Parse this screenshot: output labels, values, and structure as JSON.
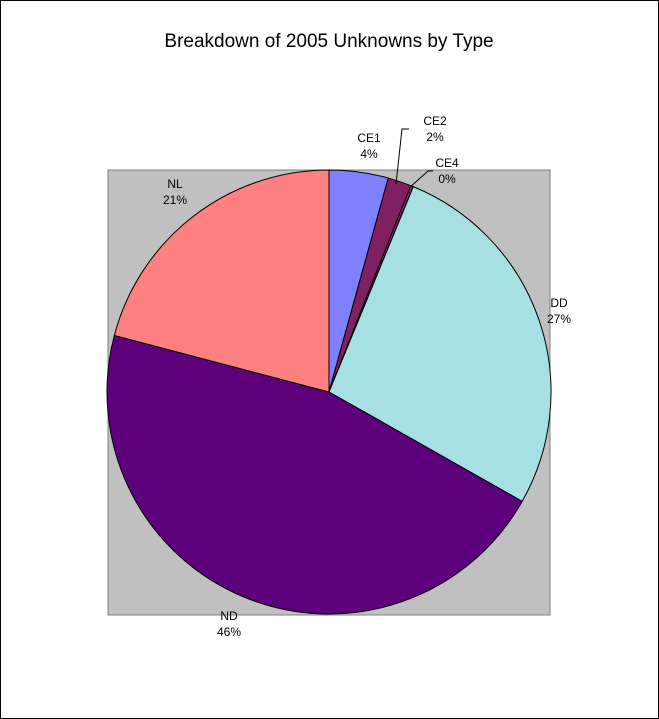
{
  "chart_data": {
    "type": "pie",
    "title": "Breakdown of 2005 Unknowns by Type",
    "plot_background": "#c0c0c0",
    "start_angle_deg": 0,
    "direction": "clockwise",
    "slices": [
      {
        "name": "CE1",
        "percent_label": "4%",
        "value": 4.3,
        "color": "#8080ff"
      },
      {
        "name": "CE2",
        "percent_label": "2%",
        "value": 1.7,
        "color": "#802060"
      },
      {
        "name": "CE4",
        "percent_label": "0%",
        "value": 0.2,
        "color": "#802060"
      },
      {
        "name": "DD",
        "percent_label": "27%",
        "value": 27.0,
        "color": "#a6e0e3"
      },
      {
        "name": "ND",
        "percent_label": "46%",
        "value": 45.9,
        "color": "#5c007c"
      },
      {
        "name": "NL",
        "percent_label": "21%",
        "value": 20.9,
        "color": "#ff8080"
      }
    ]
  }
}
